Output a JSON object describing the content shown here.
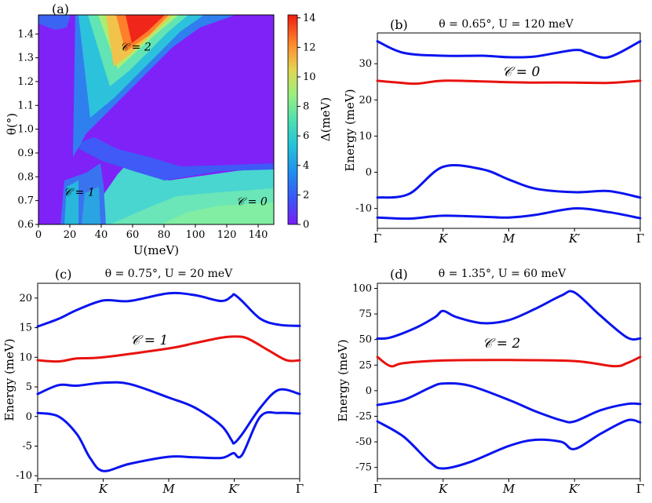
{
  "colors": {
    "blue": "#0a14ee",
    "red": "#e8120e"
  },
  "chart_data": [
    {
      "type": "heatmap",
      "panel": "(a)",
      "xlabel": "U(meV)",
      "ylabel": "θ(°)",
      "x_range": [
        0,
        150
      ],
      "y_range": [
        0.6,
        1.48
      ],
      "x_ticks": [
        "0",
        "20",
        "40",
        "60",
        "80",
        "100",
        "120",
        "140"
      ],
      "y_ticks": [
        "0.6",
        "0.7",
        "0.8",
        "0.9",
        "1.0",
        "1.1",
        "1.2",
        "1.3",
        "1.4"
      ],
      "colorbar": {
        "label": "Δ(meV)",
        "range": [
          0,
          14.2
        ],
        "ticks": [
          "0",
          "2",
          "4",
          "6",
          "8",
          "10",
          "12",
          "14"
        ]
      },
      "annotations": [
        {
          "text": "𝒞 = 2",
          "U": 52,
          "theta": 1.33
        },
        {
          "text": "𝒞 = 1",
          "U": 16,
          "theta": 0.72
        },
        {
          "text": "𝒞 = 0",
          "U": 126,
          "theta": 0.68
        }
      ]
    },
    {
      "type": "line",
      "panel": "(b)",
      "title": "θ = 0.65°, U = 120 meV",
      "ylabel": "Energy (meV)",
      "x_ticks": [
        "Γ",
        "K",
        "M",
        "K′",
        "Γ"
      ],
      "ylim": [
        -15.5,
        38.5
      ],
      "y_ticks": [
        "-10",
        "0",
        "10",
        "20",
        "30"
      ],
      "annotation": "𝒞 = 0",
      "series": [
        {
          "name": "band1",
          "color": "blue",
          "x": [
            0,
            0.12,
            0.25,
            0.4,
            0.5,
            0.6,
            0.75,
            0.88,
            1
          ],
          "values": [
            -12.5,
            -12.8,
            -12,
            -12.3,
            -12.5,
            -11.8,
            -10,
            -11,
            -12.7
          ]
        },
        {
          "name": "band2",
          "color": "blue",
          "x": [
            0,
            0.12,
            0.25,
            0.4,
            0.5,
            0.6,
            0.75,
            0.88,
            1
          ],
          "values": [
            -7,
            -6,
            1.5,
            0.8,
            -2,
            -4.5,
            -5.5,
            -5.2,
            -7
          ]
        },
        {
          "name": "band3",
          "color": "red",
          "x": [
            0,
            0.08,
            0.15,
            0.25,
            0.4,
            0.5,
            0.6,
            0.75,
            0.88,
            1
          ],
          "values": [
            25.3,
            24.8,
            24.5,
            25.3,
            25.1,
            24.9,
            24.8,
            24.8,
            24.7,
            25.3
          ]
        },
        {
          "name": "band4",
          "color": "blue",
          "x": [
            0,
            0.1,
            0.25,
            0.4,
            0.5,
            0.6,
            0.75,
            0.8,
            0.88,
            1
          ],
          "values": [
            36.2,
            33,
            32.2,
            32.2,
            31.8,
            32,
            33.8,
            33,
            31.8,
            36.2
          ]
        }
      ]
    },
    {
      "type": "line",
      "panel": "(c)",
      "title": "θ = 0.75°, U = 20 meV",
      "ylabel": "Energy (meV)",
      "x_ticks": [
        "Γ",
        "K",
        "M",
        "K′",
        "Γ"
      ],
      "ylim": [
        -10.5,
        22.5
      ],
      "y_ticks": [
        "-10",
        "-5",
        "0",
        "5",
        "10",
        "15",
        "20"
      ],
      "annotation": "𝒞 = 1",
      "series": [
        {
          "name": "band1",
          "color": "blue",
          "x": [
            0,
            0.08,
            0.15,
            0.2,
            0.25,
            0.35,
            0.5,
            0.6,
            0.7,
            0.74,
            0.75,
            0.78,
            0.85,
            0.92,
            1
          ],
          "values": [
            0.6,
            0,
            -3,
            -7,
            -9.2,
            -8,
            -6.8,
            -6.9,
            -7,
            -6.3,
            -6.2,
            -6.5,
            0,
            0.6,
            0.5
          ]
        },
        {
          "name": "band2",
          "color": "blue",
          "x": [
            0,
            0.08,
            0.15,
            0.25,
            0.35,
            0.5,
            0.6,
            0.7,
            0.74,
            0.75,
            0.78,
            0.85,
            0.92,
            1
          ],
          "values": [
            3.8,
            5.3,
            5.2,
            5.7,
            5.5,
            3.2,
            1.5,
            -1.5,
            -4,
            -4.5,
            -3,
            1.5,
            4.5,
            3.8
          ]
        },
        {
          "name": "band3",
          "color": "red",
          "x": [
            0,
            0.08,
            0.15,
            0.25,
            0.5,
            0.6,
            0.7,
            0.75,
            0.8,
            0.88,
            0.95,
            1
          ],
          "values": [
            9.5,
            9.3,
            9.8,
            10,
            11.5,
            12.4,
            13.3,
            13.5,
            13.2,
            11.2,
            9.5,
            9.5
          ]
        },
        {
          "name": "band4",
          "color": "blue",
          "x": [
            0,
            0.08,
            0.15,
            0.25,
            0.35,
            0.5,
            0.6,
            0.7,
            0.74,
            0.75,
            0.78,
            0.85,
            0.92,
            1
          ],
          "values": [
            15.2,
            16.5,
            18,
            19.6,
            19.5,
            20.8,
            20.5,
            19.5,
            20.3,
            20.6,
            19.5,
            16.5,
            15.5,
            15.3
          ]
        }
      ]
    },
    {
      "type": "line",
      "panel": "(d)",
      "title": "θ = 1.35°, U = 60 meV",
      "ylabel": "Energy (meV)",
      "x_ticks": [
        "Γ",
        "K",
        "M",
        "K′",
        "Γ"
      ],
      "ylim": [
        -86,
        105
      ],
      "y_ticks": [
        "-75",
        "-50",
        "-25",
        "0",
        "25",
        "50",
        "75",
        "100"
      ],
      "annotation": "𝒞 = 2",
      "series": [
        {
          "name": "band1",
          "color": "blue",
          "x": [
            0,
            0.1,
            0.2,
            0.25,
            0.35,
            0.5,
            0.6,
            0.7,
            0.75,
            0.85,
            0.95,
            1
          ],
          "values": [
            -30,
            -45,
            -70,
            -76,
            -70,
            -54,
            -48,
            -50,
            -57,
            -42,
            -29,
            -31
          ]
        },
        {
          "name": "band2",
          "color": "blue",
          "x": [
            0,
            0.1,
            0.2,
            0.25,
            0.35,
            0.5,
            0.6,
            0.7,
            0.75,
            0.85,
            0.95,
            1
          ],
          "values": [
            -14,
            -9,
            3,
            7,
            5,
            -9,
            -20,
            -29,
            -30,
            -19,
            -13,
            -13
          ]
        },
        {
          "name": "band3",
          "color": "red",
          "x": [
            0,
            0.05,
            0.1,
            0.25,
            0.5,
            0.75,
            0.9,
            0.95,
            1
          ],
          "values": [
            33,
            24,
            27,
            29.5,
            30,
            29,
            24,
            27,
            33
          ]
        },
        {
          "name": "band4",
          "color": "blue",
          "x": [
            0,
            0.05,
            0.15,
            0.22,
            0.25,
            0.3,
            0.4,
            0.5,
            0.6,
            0.7,
            0.75,
            0.85,
            0.95,
            1
          ],
          "values": [
            51,
            52,
            62,
            72,
            78,
            72,
            66,
            69,
            80,
            93,
            96,
            73,
            52,
            51
          ]
        }
      ]
    }
  ]
}
